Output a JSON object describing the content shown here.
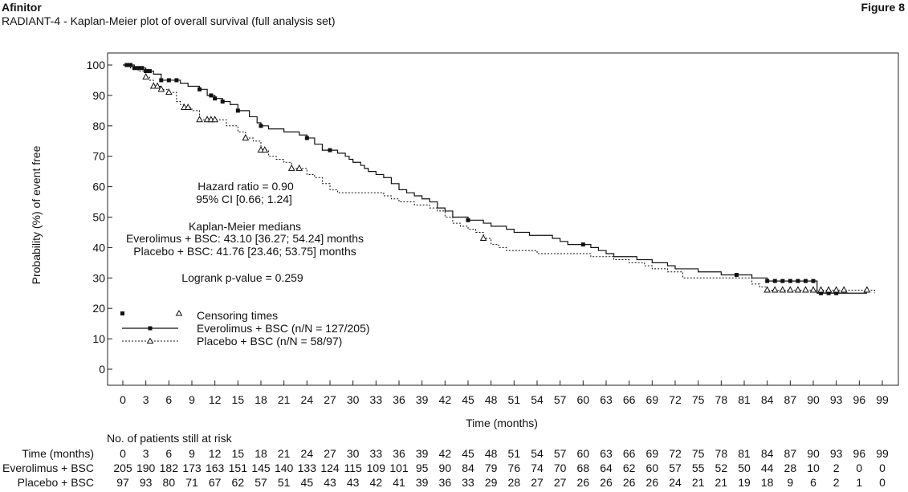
{
  "header": {
    "brand": "Afinitor",
    "figure_label": "Figure 8",
    "subtitle": "RADIANT-4 - Kaplan-Meier plot of overall survival (full analysis set)"
  },
  "chart_data": {
    "type": "line",
    "title": "RADIANT-4 - Kaplan-Meier plot of overall survival (full analysis set)",
    "xlabel": "Time (months)",
    "ylabel": "Probability (%) of event free",
    "xlim": [
      0,
      99
    ],
    "ylim": [
      0,
      100
    ],
    "xticks": [
      0,
      3,
      6,
      9,
      12,
      15,
      18,
      21,
      24,
      27,
      30,
      33,
      36,
      39,
      42,
      45,
      48,
      51,
      54,
      57,
      60,
      63,
      66,
      69,
      72,
      75,
      78,
      81,
      84,
      87,
      90,
      93,
      96,
      99
    ],
    "yticks": [
      0,
      10,
      20,
      30,
      40,
      50,
      60,
      70,
      80,
      90,
      100
    ],
    "grid": false,
    "legend_position": "bottom-left",
    "legend": {
      "censoring_label": "Censoring times",
      "entries": [
        "Everolimus + BSC (n/N = 127/205)",
        "Placebo + BSC (n/N = 58/97)"
      ]
    },
    "annotations": [
      "Hazard ratio = 0.90",
      "95% CI [0.66; 1.24]",
      "Kaplan-Meier medians",
      "Everolimus + BSC: 43.10 [36.27; 54.24] months",
      "Placebo + BSC: 41.76 [23.46; 53.75] months",
      "Logrank p-value = 0.259"
    ],
    "series": [
      {
        "name": "Everolimus + BSC",
        "style": "solid",
        "steps": [
          [
            0,
            100
          ],
          [
            1.5,
            99
          ],
          [
            3,
            98
          ],
          [
            4,
            97
          ],
          [
            5,
            95
          ],
          [
            7.5,
            94
          ],
          [
            8.5,
            93
          ],
          [
            10,
            92
          ],
          [
            11,
            90
          ],
          [
            12,
            89
          ],
          [
            13,
            88
          ],
          [
            14,
            87
          ],
          [
            15,
            85
          ],
          [
            16.5,
            83
          ],
          [
            17.5,
            81
          ],
          [
            18,
            80
          ],
          [
            19,
            79
          ],
          [
            21,
            78
          ],
          [
            23,
            77
          ],
          [
            24,
            76
          ],
          [
            25,
            74
          ],
          [
            26,
            72
          ],
          [
            28,
            71
          ],
          [
            29,
            70
          ],
          [
            29.5,
            69
          ],
          [
            30,
            68
          ],
          [
            31,
            67
          ],
          [
            31.5,
            66
          ],
          [
            32,
            65
          ],
          [
            33,
            64
          ],
          [
            34,
            63
          ],
          [
            35,
            61
          ],
          [
            36,
            59
          ],
          [
            37,
            58
          ],
          [
            38,
            57
          ],
          [
            39,
            56
          ],
          [
            40,
            55
          ],
          [
            41,
            53
          ],
          [
            42,
            52
          ],
          [
            43,
            50
          ],
          [
            45,
            49
          ],
          [
            47,
            48
          ],
          [
            48,
            47
          ],
          [
            50,
            46
          ],
          [
            51,
            45
          ],
          [
            53,
            44
          ],
          [
            56,
            43
          ],
          [
            57,
            42
          ],
          [
            58,
            41
          ],
          [
            61,
            40
          ],
          [
            62,
            39
          ],
          [
            63,
            38
          ],
          [
            64,
            37
          ],
          [
            67,
            36
          ],
          [
            69,
            35
          ],
          [
            71,
            34
          ],
          [
            72,
            33
          ],
          [
            75,
            32
          ],
          [
            78,
            31
          ],
          [
            82,
            30
          ],
          [
            84,
            29
          ],
          [
            90.5,
            25
          ],
          [
            97,
            25
          ]
        ],
        "censor_x": [
          0.5,
          1,
          1.5,
          2,
          2.5,
          3,
          3.5,
          5,
          6,
          7,
          10,
          11.5,
          12,
          13,
          15,
          18,
          24,
          27,
          45,
          60,
          80,
          84,
          85,
          86,
          87,
          88,
          89,
          90,
          91,
          92,
          93
        ]
      },
      {
        "name": "Placebo + BSC",
        "style": "dashed",
        "steps": [
          [
            0,
            100
          ],
          [
            1,
            99
          ],
          [
            2,
            98
          ],
          [
            3,
            96
          ],
          [
            3.5,
            95
          ],
          [
            4,
            93
          ],
          [
            5,
            92
          ],
          [
            6,
            91
          ],
          [
            7,
            88
          ],
          [
            7.5,
            87
          ],
          [
            8,
            86
          ],
          [
            9,
            85
          ],
          [
            10,
            82
          ],
          [
            13.5,
            80
          ],
          [
            15,
            78
          ],
          [
            16,
            76
          ],
          [
            17,
            75
          ],
          [
            18,
            72
          ],
          [
            19,
            70
          ],
          [
            20,
            69
          ],
          [
            21,
            68
          ],
          [
            22,
            66
          ],
          [
            24,
            64
          ],
          [
            25,
            63
          ],
          [
            26,
            61
          ],
          [
            27,
            59
          ],
          [
            28,
            58
          ],
          [
            34,
            57
          ],
          [
            35,
            56
          ],
          [
            36,
            55
          ],
          [
            38,
            54
          ],
          [
            40,
            53
          ],
          [
            41,
            52
          ],
          [
            42,
            50
          ],
          [
            43,
            48
          ],
          [
            44,
            47
          ],
          [
            45,
            46
          ],
          [
            46,
            45
          ],
          [
            47,
            43
          ],
          [
            48,
            41
          ],
          [
            49,
            40
          ],
          [
            50,
            39
          ],
          [
            54,
            38
          ],
          [
            61,
            37
          ],
          [
            64,
            36
          ],
          [
            66,
            35
          ],
          [
            68,
            34
          ],
          [
            69,
            33
          ],
          [
            71,
            32
          ],
          [
            73,
            30
          ],
          [
            82,
            28
          ],
          [
            83,
            27
          ],
          [
            84,
            26
          ],
          [
            98,
            25
          ]
        ],
        "censor_x": [
          3,
          4,
          4.5,
          5,
          6,
          8,
          8.5,
          10,
          11,
          11.5,
          12,
          16,
          18,
          18.5,
          22,
          23,
          47,
          84,
          85,
          86,
          87,
          88,
          89,
          90,
          91,
          92,
          93,
          94,
          97
        ]
      }
    ],
    "risk_table": {
      "title": "No. of patients still at risk",
      "row_labels": [
        "Time (months)",
        "Everolimus + BSC",
        "Placebo + BSC"
      ],
      "times": [
        "0",
        "3",
        "6",
        "9",
        "12",
        "15",
        "18",
        "21",
        "24",
        "27",
        "30",
        "33",
        "36",
        "39",
        "42",
        "45",
        "48",
        "51",
        "54",
        "57",
        "60",
        "63",
        "66",
        "69",
        "72",
        "75",
        "78",
        "81",
        "84",
        "87",
        "90",
        "93",
        "96",
        "99"
      ],
      "everolimus": [
        "205",
        "190",
        "182",
        "173",
        "163",
        "151",
        "145",
        "140",
        "133",
        "124",
        "115",
        "109",
        "101",
        "95",
        "90",
        "84",
        "79",
        "76",
        "74",
        "70",
        "68",
        "64",
        "62",
        "60",
        "57",
        "55",
        "52",
        "50",
        "44",
        "28",
        "10",
        "2",
        "0",
        "0"
      ],
      "placebo": [
        "97",
        "93",
        "80",
        "71",
        "67",
        "62",
        "57",
        "51",
        "45",
        "43",
        "43",
        "42",
        "41",
        "39",
        "36",
        "33",
        "29",
        "28",
        "27",
        "27",
        "26",
        "26",
        "26",
        "26",
        "24",
        "21",
        "21",
        "19",
        "18",
        "9",
        "6",
        "2",
        "1",
        "0"
      ]
    }
  }
}
